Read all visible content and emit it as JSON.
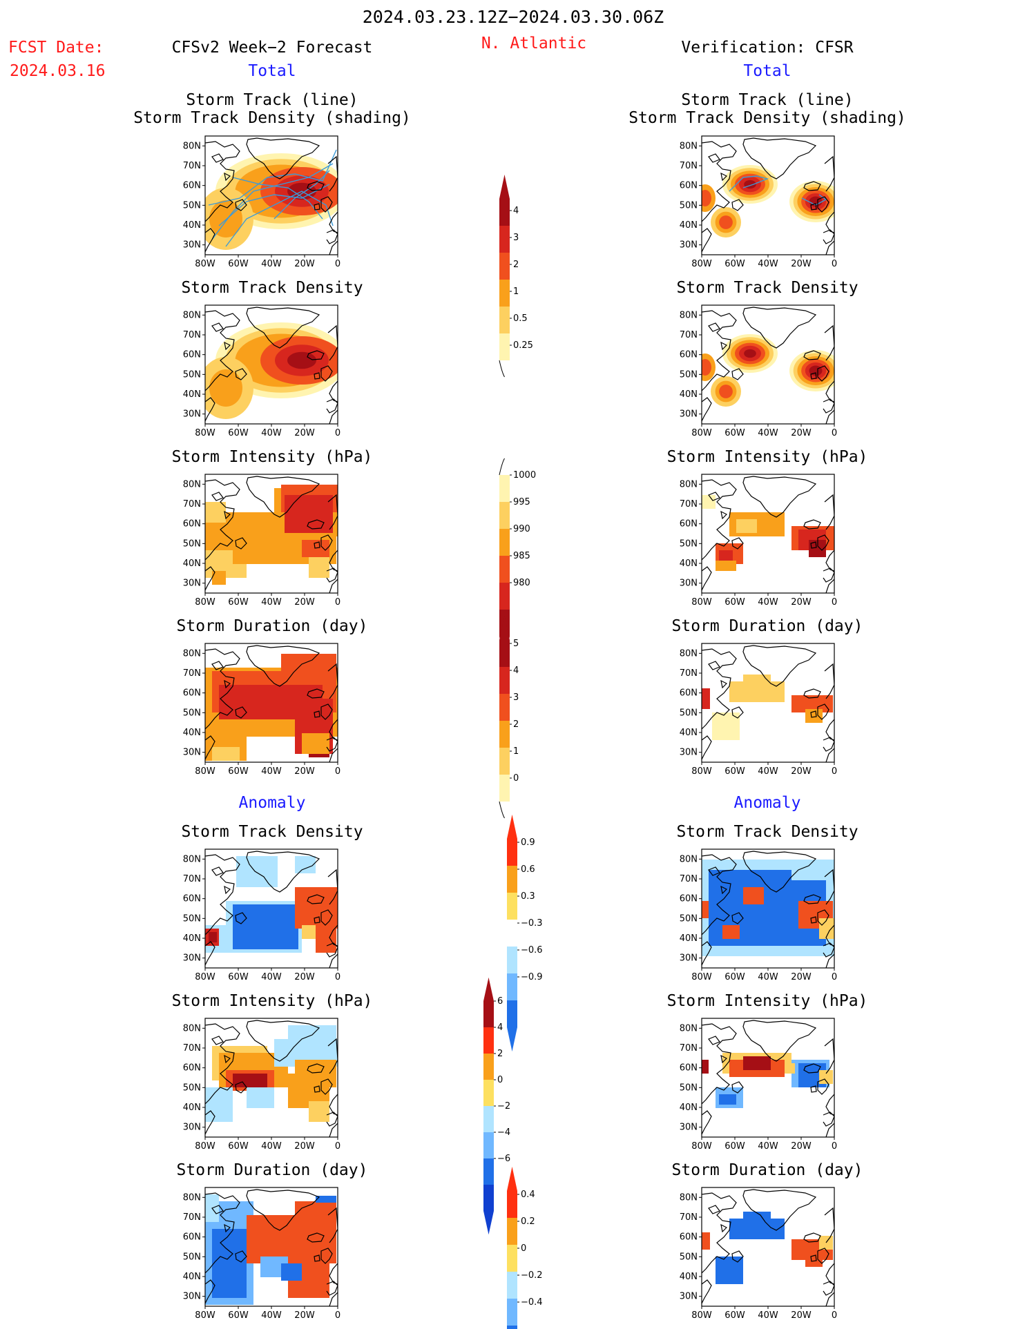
{
  "header": {
    "date_range": "2024.03.23.12Z−2024.03.30.06Z",
    "fcst_label": "FCST Date:",
    "fcst_date": "2024.03.16",
    "left_title": "CFSv2 Week−2 Forecast",
    "region": "N. Atlantic",
    "right_title": "Verification: CFSR",
    "left_total": "Total",
    "right_total": "Total"
  },
  "sections": {
    "anomaly_left": "Anomaly",
    "anomaly_right": "Anomaly"
  },
  "panel_titles": {
    "track_line": "Storm Track (line)",
    "track_shading": "Storm Track Density (shading)",
    "density": "Storm Track Density",
    "intensity": "Storm Intensity (hPa)",
    "duration": "Storm Duration (day)"
  },
  "axes": {
    "x_ticks": [
      "80W",
      "60W",
      "40W",
      "20W",
      "0"
    ],
    "y_ticks": [
      "80N",
      "70N",
      "60N",
      "50N",
      "40N",
      "30N"
    ]
  },
  "colorbars": {
    "density_total": {
      "labels": [
        "4",
        "3",
        "2",
        "1",
        "0.5",
        "0.25"
      ],
      "colors": [
        "#a50f15",
        "#d7261e",
        "#f0501e",
        "#f9a01b",
        "#fdd060",
        "#fff4b0"
      ]
    },
    "intensity_total": {
      "labels": [
        "1000",
        "995",
        "990",
        "985",
        "980"
      ],
      "colors": [
        "#fff4b0",
        "#fdd060",
        "#f9a01b",
        "#f0501e",
        "#d7261e",
        "#a50f15"
      ]
    },
    "duration_total": {
      "labels": [
        "5",
        "4",
        "3",
        "2",
        "1",
        "0"
      ],
      "colors": [
        "#a50f15",
        "#d7261e",
        "#f0501e",
        "#f9a01b",
        "#fdd060",
        "#fff4b0"
      ]
    },
    "density_anom": {
      "labels": [
        "0.9",
        "0.6",
        "0.3",
        "−0.3",
        "−0.6",
        "−0.9"
      ],
      "colors": [
        "#ff3010",
        "#f9a01b",
        "#fde060",
        "#ffffff",
        "#b0e4ff",
        "#70b8ff",
        "#2070e8"
      ]
    },
    "intensity_anom": {
      "labels": [
        "6",
        "4",
        "2",
        "0",
        "−2",
        "−4",
        "−6"
      ],
      "colors": [
        "#a50f15",
        "#ff3010",
        "#f9a01b",
        "#fde060",
        "#b0e4ff",
        "#70b8ff",
        "#2070e8",
        "#1040d0"
      ]
    },
    "duration_anom": {
      "labels": [
        "0.4",
        "0.2",
        "0",
        "−0.2",
        "−0.4"
      ],
      "colors": [
        "#ff3010",
        "#f9a01b",
        "#fde060",
        "#b0e4ff",
        "#70b8ff",
        "#2070e8"
      ]
    }
  },
  "colors": {
    "accent_red": "#ff1a1a",
    "accent_blue": "#1a1aff",
    "track_line": "#3c9ad8"
  }
}
